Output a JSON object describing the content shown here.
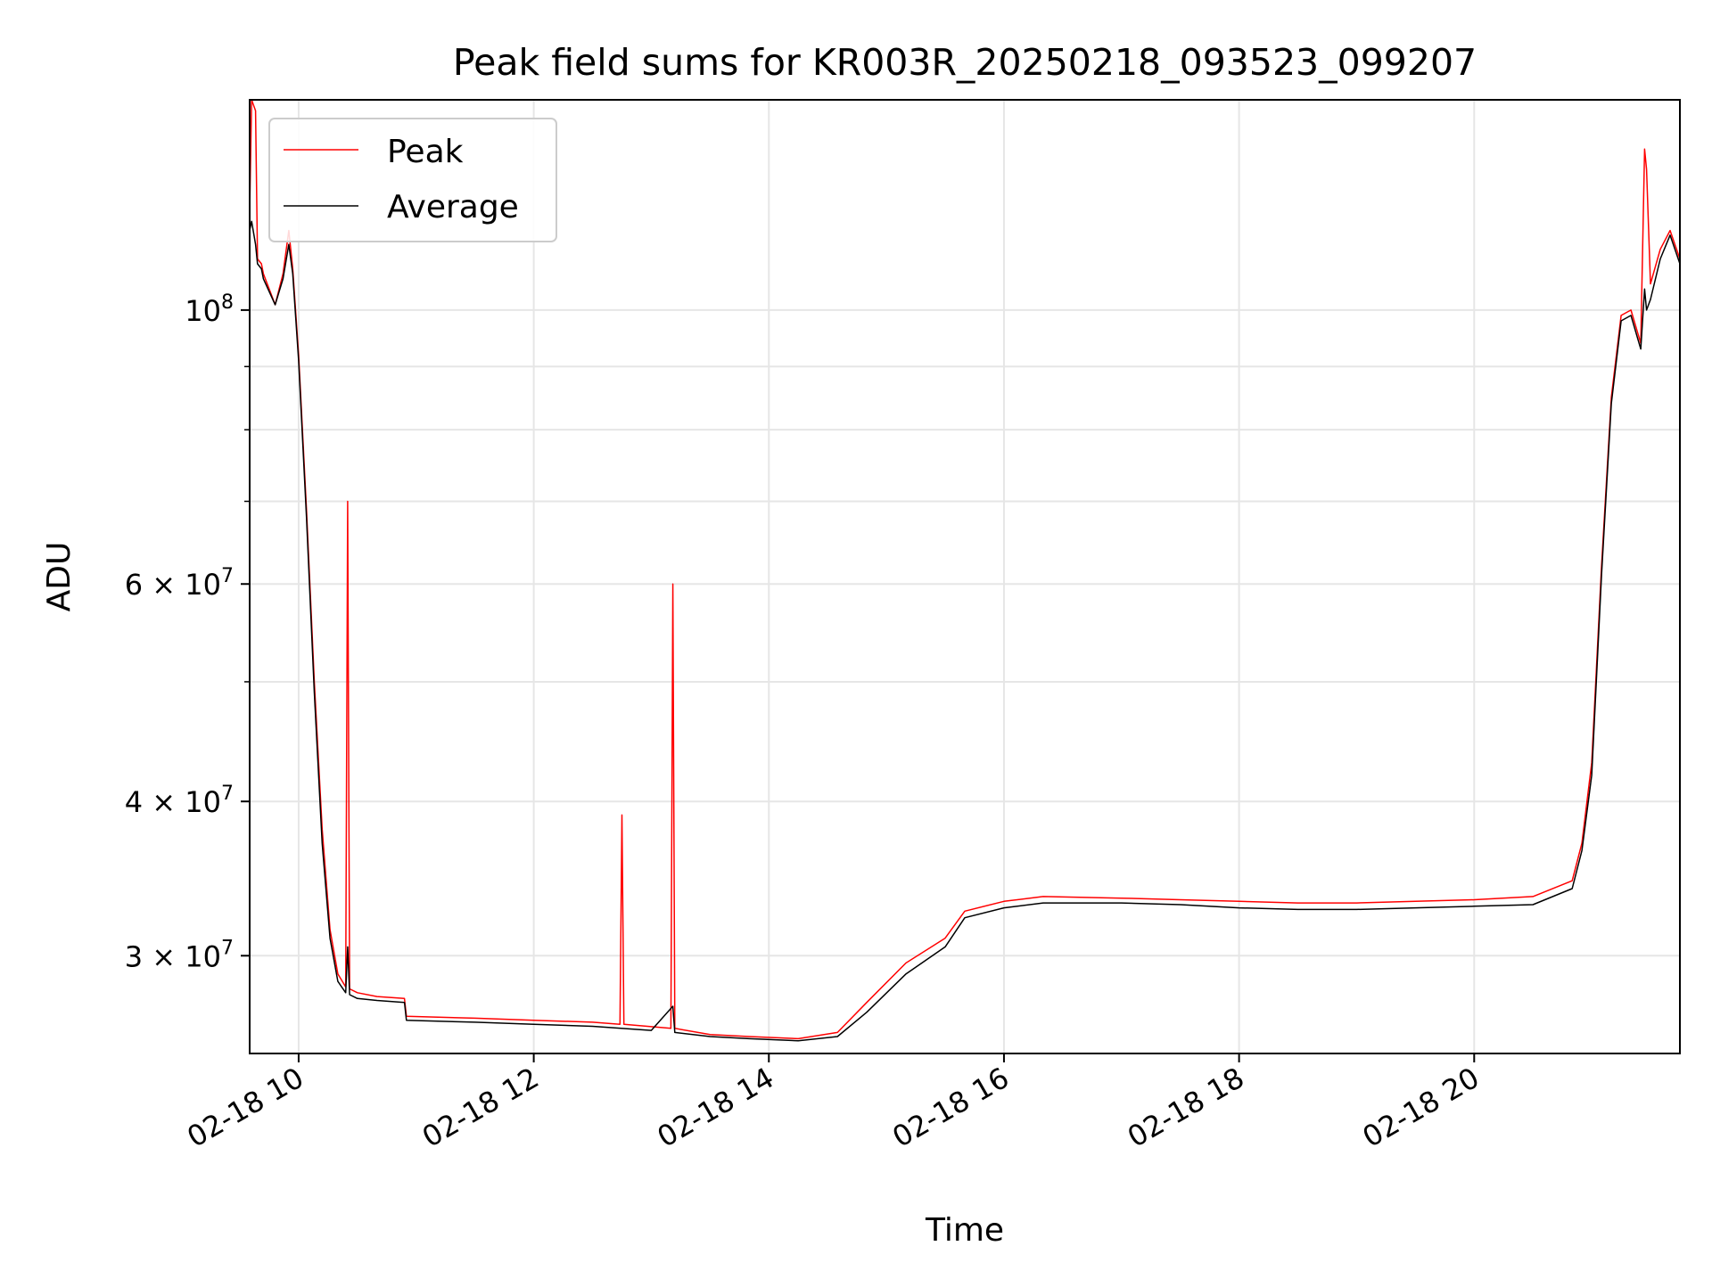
{
  "chart_data": {
    "type": "line",
    "title": "Peak field sums for KR003R_20250218_093523_099207",
    "xlabel": "Time",
    "ylabel": "ADU",
    "x_ticks": [
      "02-18 10",
      "02-18 12",
      "02-18 14",
      "02-18 16",
      "02-18 18",
      "02-18 20"
    ],
    "y_tick_labels": [
      {
        "value": 100000000,
        "base": "10",
        "exp": "8"
      },
      {
        "value": 60000000,
        "base": "6 × 10",
        "exp": "7"
      },
      {
        "value": 40000000,
        "base": "4 × 10",
        "exp": "7"
      },
      {
        "value": 30000000,
        "base": "3 × 10",
        "exp": "7"
      }
    ],
    "y_minor_ticks": [
      90000000,
      80000000,
      70000000,
      50000000
    ],
    "y_scale": "log",
    "xlim": [
      "2025-02-18 09:35",
      "2025-02-18 21:45"
    ],
    "ylim": [
      25000000,
      148000000
    ],
    "grid": true,
    "legend_position": "top-left",
    "series": [
      {
        "name": "Peak",
        "color": "#ff0000",
        "x": [
          "2025-02-18 09:35",
          "2025-02-18 09:36",
          "2025-02-18 09:38",
          "2025-02-18 09:39",
          "2025-02-18 09:41",
          "2025-02-18 09:42",
          "2025-02-18 09:48",
          "2025-02-18 09:52",
          "2025-02-18 09:55",
          "2025-02-18 09:57",
          "2025-02-18 10:00",
          "2025-02-18 10:04",
          "2025-02-18 10:08",
          "2025-02-18 10:12",
          "2025-02-18 10:16",
          "2025-02-18 10:20",
          "2025-02-18 10:24",
          "2025-02-18 10:25",
          "2025-02-18 10:26",
          "2025-02-18 10:30",
          "2025-02-18 10:40",
          "2025-02-18 10:54",
          "2025-02-18 10:55",
          "2025-02-18 11:30",
          "2025-02-18 12:00",
          "2025-02-18 12:30",
          "2025-02-18 12:44",
          "2025-02-18 12:45",
          "2025-02-18 12:46",
          "2025-02-18 13:10",
          "2025-02-18 13:11",
          "2025-02-18 13:12",
          "2025-02-18 13:30",
          "2025-02-18 13:50",
          "2025-02-18 14:15",
          "2025-02-18 14:35",
          "2025-02-18 14:50",
          "2025-02-18 15:10",
          "2025-02-18 15:30",
          "2025-02-18 15:40",
          "2025-02-18 16:00",
          "2025-02-18 16:20",
          "2025-02-18 17:00",
          "2025-02-18 17:30",
          "2025-02-18 18:00",
          "2025-02-18 18:30",
          "2025-02-18 19:00",
          "2025-02-18 19:30",
          "2025-02-18 20:00",
          "2025-02-18 20:30",
          "2025-02-18 20:50",
          "2025-02-18 20:55",
          "2025-02-18 21:00",
          "2025-02-18 21:05",
          "2025-02-18 21:10",
          "2025-02-18 21:15",
          "2025-02-18 21:20",
          "2025-02-18 21:25",
          "2025-02-18 21:27",
          "2025-02-18 21:28",
          "2025-02-18 21:30",
          "2025-02-18 21:35",
          "2025-02-18 21:40",
          "2025-02-18 21:45"
        ],
        "y": [
          120000000,
          148000000,
          145000000,
          110000000,
          109000000,
          107000000,
          101000000,
          107000000,
          116000000,
          108000000,
          92000000,
          69000000,
          50000000,
          38000000,
          31500000,
          29000000,
          28300000,
          70000000,
          28200000,
          28000000,
          27800000,
          27700000,
          26800000,
          26700000,
          26600000,
          26500000,
          26400000,
          39000000,
          26400000,
          26200000,
          60000000,
          26200000,
          25900000,
          25800000,
          25700000,
          26000000,
          27500000,
          29600000,
          31000000,
          32600000,
          33200000,
          33500000,
          33400000,
          33300000,
          33200000,
          33100000,
          33100000,
          33200000,
          33300000,
          33500000,
          34500000,
          37000000,
          43000000,
          62000000,
          85000000,
          99000000,
          100000000,
          94000000,
          135000000,
          130000000,
          105000000,
          112000000,
          116000000,
          110000000
        ]
      },
      {
        "name": "Average",
        "color": "#000000",
        "x": [
          "2025-02-18 09:35",
          "2025-02-18 09:36",
          "2025-02-18 09:38",
          "2025-02-18 09:39",
          "2025-02-18 09:41",
          "2025-02-18 09:42",
          "2025-02-18 09:48",
          "2025-02-18 09:52",
          "2025-02-18 09:55",
          "2025-02-18 09:57",
          "2025-02-18 10:00",
          "2025-02-18 10:04",
          "2025-02-18 10:08",
          "2025-02-18 10:12",
          "2025-02-18 10:16",
          "2025-02-18 10:20",
          "2025-02-18 10:24",
          "2025-02-18 10:25",
          "2025-02-18 10:26",
          "2025-02-18 10:30",
          "2025-02-18 10:40",
          "2025-02-18 10:54",
          "2025-02-18 10:55",
          "2025-02-18 11:30",
          "2025-02-18 12:00",
          "2025-02-18 12:30",
          "2025-02-18 13:00",
          "2025-02-18 13:11",
          "2025-02-18 13:12",
          "2025-02-18 13:30",
          "2025-02-18 13:50",
          "2025-02-18 14:15",
          "2025-02-18 14:35",
          "2025-02-18 14:50",
          "2025-02-18 15:10",
          "2025-02-18 15:30",
          "2025-02-18 15:40",
          "2025-02-18 16:00",
          "2025-02-18 16:20",
          "2025-02-18 17:00",
          "2025-02-18 17:30",
          "2025-02-18 18:00",
          "2025-02-18 18:30",
          "2025-02-18 19:00",
          "2025-02-18 19:30",
          "2025-02-18 20:00",
          "2025-02-18 20:30",
          "2025-02-18 20:50",
          "2025-02-18 20:55",
          "2025-02-18 21:00",
          "2025-02-18 21:05",
          "2025-02-18 21:10",
          "2025-02-18 21:15",
          "2025-02-18 21:20",
          "2025-02-18 21:25",
          "2025-02-18 21:27",
          "2025-02-18 21:28",
          "2025-02-18 21:30",
          "2025-02-18 21:35",
          "2025-02-18 21:40",
          "2025-02-18 21:45"
        ],
        "y": [
          116000000,
          118000000,
          113000000,
          109000000,
          108000000,
          106000000,
          101000000,
          106000000,
          113000000,
          107000000,
          91000000,
          68000000,
          49000000,
          37000000,
          31000000,
          28600000,
          28000000,
          30500000,
          27900000,
          27700000,
          27600000,
          27500000,
          26600000,
          26500000,
          26400000,
          26300000,
          26100000,
          27300000,
          26000000,
          25800000,
          25700000,
          25600000,
          25800000,
          27000000,
          29000000,
          30500000,
          32200000,
          32800000,
          33100000,
          33100000,
          33000000,
          32800000,
          32700000,
          32700000,
          32800000,
          32900000,
          33000000,
          34000000,
          36500000,
          42000000,
          61000000,
          84000000,
          98000000,
          99000000,
          93000000,
          104000000,
          100000000,
          102000000,
          110000000,
          115000000,
          109000000
        ]
      }
    ]
  }
}
